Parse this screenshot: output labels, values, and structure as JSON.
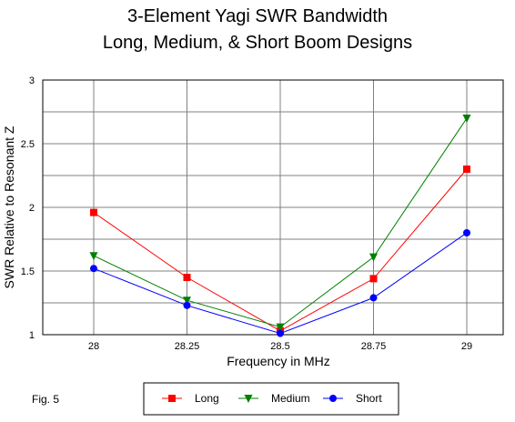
{
  "chart_data": {
    "type": "line",
    "title": "3-Element Yagi SWR Bandwidth",
    "subtitle": "Long, Medium, & Short Boom Designs",
    "xlabel": "Frequency in MHz",
    "ylabel": "SWR Relative to Resonant Z",
    "categories": [
      "28",
      "28.25",
      "28.5",
      "28.75",
      "29"
    ],
    "y_ticks": [
      "1",
      "1.5",
      "2",
      "2.5",
      "3"
    ],
    "ylim": [
      1,
      3
    ],
    "grid": true,
    "legend_position": "bottom",
    "series": [
      {
        "name": "Long",
        "color": "#ff0000",
        "marker": "square",
        "values": [
          1.96,
          1.45,
          1.03,
          1.44,
          2.3
        ]
      },
      {
        "name": "Medium",
        "color": "#008000",
        "marker": "triangle-down",
        "values": [
          1.62,
          1.27,
          1.06,
          1.61,
          2.7
        ]
      },
      {
        "name": "Short",
        "color": "#0000ff",
        "marker": "circle",
        "values": [
          1.52,
          1.23,
          1.01,
          1.29,
          1.8
        ]
      }
    ]
  },
  "figure_label": "Fig. 5"
}
